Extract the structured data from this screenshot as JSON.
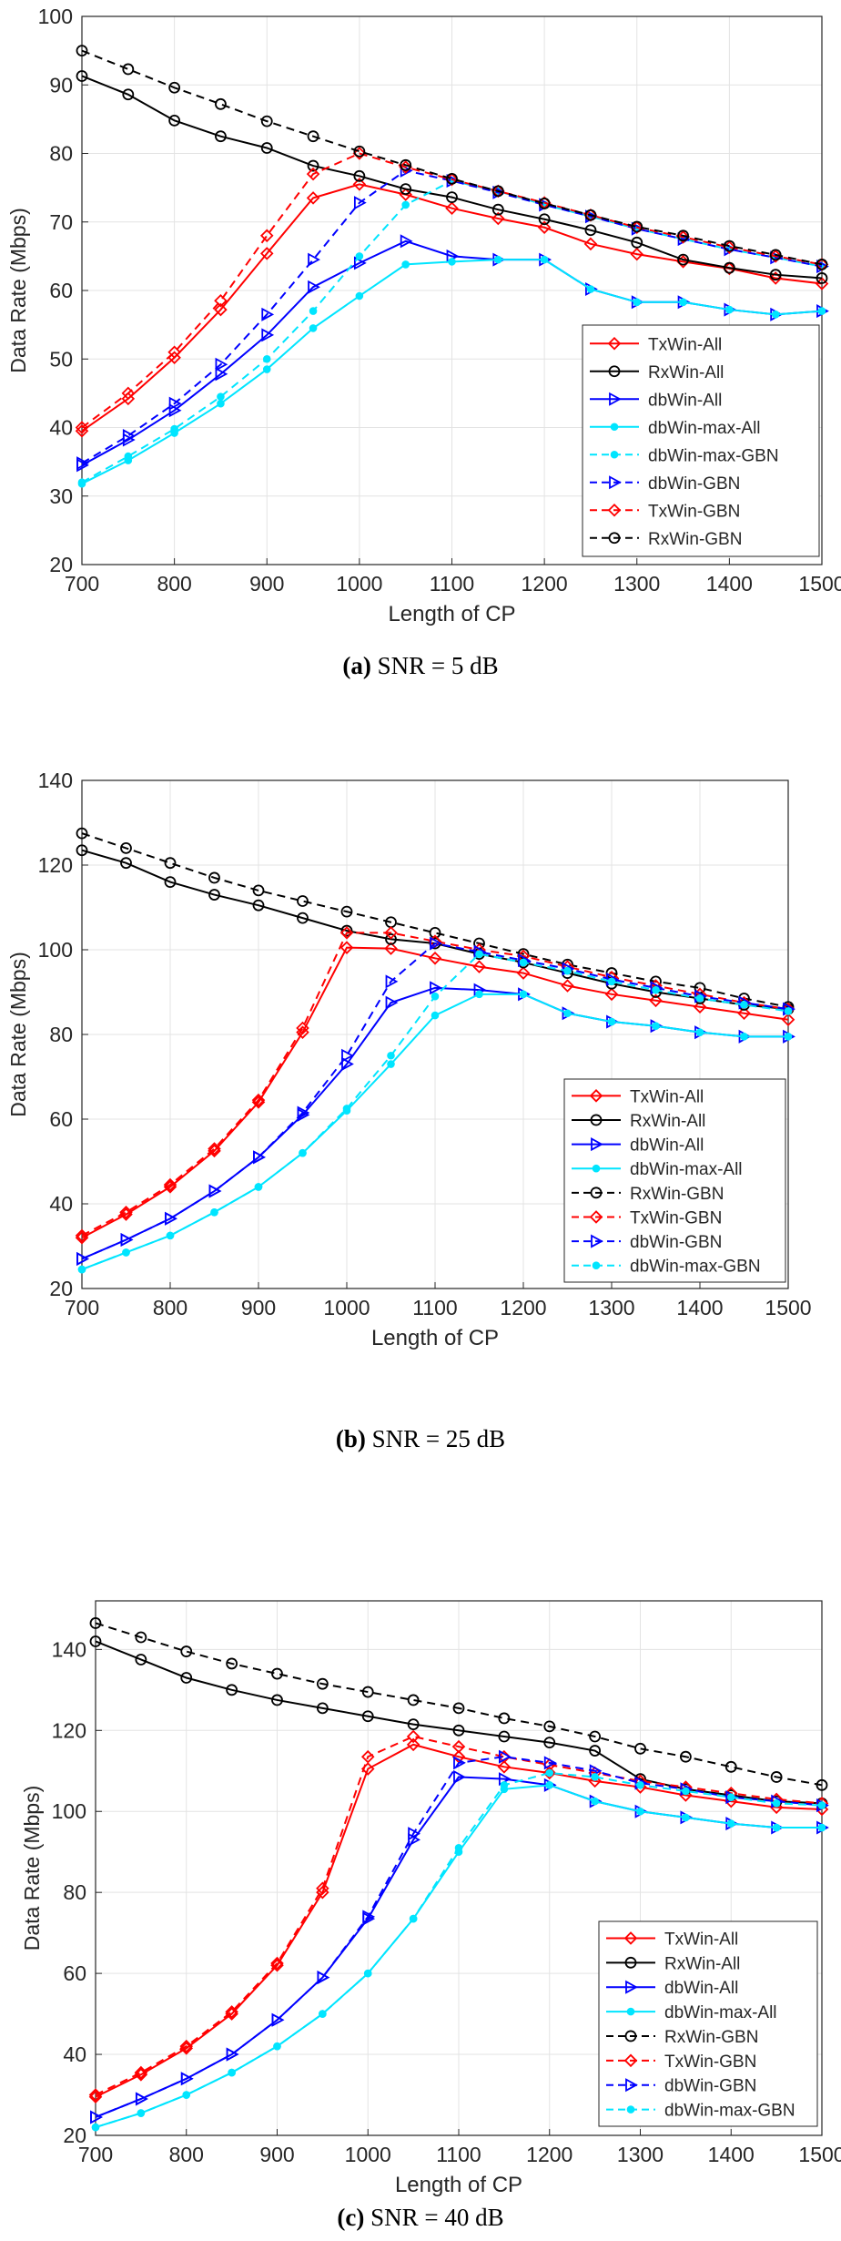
{
  "chart_data": [
    {
      "type": "line",
      "caption_letter": "(a)",
      "caption_text": "SNR = 5 dB",
      "xlabel": "Length of CP",
      "ylabel": "Data Rate (Mbps)",
      "xlim": [
        700,
        1500
      ],
      "ylim": [
        20,
        100
      ],
      "xticks": [
        700,
        800,
        900,
        1000,
        1100,
        1200,
        1300,
        1400,
        1500
      ],
      "yticks": [
        20,
        30,
        40,
        50,
        60,
        70,
        80,
        90,
        100
      ],
      "grid": true,
      "legend_position": "right",
      "x": [
        700,
        750,
        800,
        850,
        900,
        950,
        1000,
        1050,
        1100,
        1150,
        1200,
        1250,
        1300,
        1350,
        1400,
        1450,
        1500
      ],
      "series": [
        {
          "name": "TxWin-All",
          "color": "#ff0000",
          "dash": "solid",
          "marker": "diamond",
          "values": [
            39.5,
            44.2,
            50.2,
            57.2,
            65.4,
            73.5,
            75.5,
            74.0,
            72.0,
            70.5,
            69.2,
            66.8,
            65.3,
            64.2,
            63.2,
            61.8,
            61.0
          ]
        },
        {
          "name": "RxWin-All",
          "color": "#000000",
          "dash": "solid",
          "marker": "circle",
          "values": [
            91.3,
            88.6,
            84.8,
            82.5,
            80.8,
            78.2,
            76.7,
            74.8,
            73.6,
            71.8,
            70.4,
            68.8,
            67.0,
            64.5,
            63.3,
            62.3,
            61.8
          ]
        },
        {
          "name": "dbWin-All",
          "color": "#0000ff",
          "dash": "solid",
          "marker": "triangle-right",
          "values": [
            34.5,
            38.2,
            42.5,
            47.8,
            53.5,
            60.5,
            64.0,
            67.2,
            65.0,
            64.5,
            64.5,
            60.2,
            58.3,
            58.3,
            57.2,
            56.5,
            57.0
          ]
        },
        {
          "name": "dbWin-max-All",
          "color": "#00e5ff",
          "dash": "solid",
          "marker": "dot",
          "values": [
            31.8,
            35.2,
            39.2,
            43.5,
            48.5,
            54.5,
            59.2,
            63.8,
            64.2,
            64.5,
            64.5,
            60.2,
            58.3,
            58.3,
            57.2,
            56.5,
            57.0
          ]
        },
        {
          "name": "dbWin-max-GBN",
          "color": "#00e5ff",
          "dash": "dashed",
          "marker": "dot",
          "values": [
            32.0,
            35.8,
            39.8,
            44.5,
            50.0,
            57.0,
            65.0,
            72.5,
            76.0,
            74.5,
            72.5,
            70.8,
            69.0,
            67.5,
            66.0,
            64.8,
            63.5
          ]
        },
        {
          "name": "dbWin-GBN",
          "color": "#0000ff",
          "dash": "dashed",
          "marker": "triangle-right",
          "values": [
            34.8,
            38.8,
            43.5,
            49.2,
            56.5,
            64.5,
            72.8,
            77.5,
            76.0,
            74.3,
            72.5,
            70.8,
            69.0,
            67.5,
            66.0,
            64.8,
            63.5
          ]
        },
        {
          "name": "TxWin-GBN",
          "color": "#ff0000",
          "dash": "dashed",
          "marker": "diamond",
          "values": [
            40.0,
            45.0,
            51.0,
            58.5,
            68.0,
            77.0,
            80.0,
            78.0,
            76.2,
            74.5,
            72.8,
            71.0,
            69.2,
            67.8,
            66.3,
            65.0,
            63.8
          ]
        },
        {
          "name": "RxWin-GBN",
          "color": "#000000",
          "dash": "dashed",
          "marker": "circle",
          "values": [
            95.0,
            92.3,
            89.6,
            87.2,
            84.7,
            82.5,
            80.3,
            78.3,
            76.3,
            74.5,
            72.7,
            71.0,
            69.3,
            68.0,
            66.5,
            65.2,
            63.8
          ]
        }
      ]
    },
    {
      "type": "line",
      "caption_letter": "(b)",
      "caption_text": "SNR = 25 dB",
      "xlabel": "Length of CP",
      "ylabel": "Data Rate (Mbps)",
      "xlim": [
        700,
        1500
      ],
      "ylim": [
        20,
        140
      ],
      "xticks": [
        700,
        800,
        900,
        1000,
        1100,
        1200,
        1300,
        1400,
        1500
      ],
      "yticks": [
        20,
        40,
        60,
        80,
        100,
        120,
        140
      ],
      "grid": true,
      "legend_position": "bottom-right",
      "x": [
        700,
        750,
        800,
        850,
        900,
        950,
        1000,
        1050,
        1100,
        1150,
        1200,
        1250,
        1300,
        1350,
        1400,
        1450,
        1500
      ],
      "series": [
        {
          "name": "TxWin-All",
          "color": "#ff0000",
          "dash": "solid",
          "marker": "diamond",
          "values": [
            32.0,
            37.5,
            44.0,
            52.5,
            64.0,
            80.5,
            100.5,
            100.3,
            98.0,
            96.0,
            94.5,
            91.5,
            89.5,
            88.0,
            86.5,
            85.0,
            83.5
          ]
        },
        {
          "name": "RxWin-All",
          "color": "#000000",
          "dash": "solid",
          "marker": "circle",
          "values": [
            123.5,
            120.5,
            116.0,
            113.0,
            110.5,
            107.5,
            104.5,
            102.5,
            101.5,
            99.0,
            97.0,
            94.5,
            92.0,
            90.0,
            88.5,
            87.0,
            86.0
          ]
        },
        {
          "name": "dbWin-All",
          "color": "#0000ff",
          "dash": "solid",
          "marker": "triangle-right",
          "values": [
            27.0,
            31.5,
            36.5,
            43.0,
            51.0,
            61.0,
            73.0,
            87.5,
            91.0,
            90.5,
            89.5,
            85.0,
            83.0,
            82.0,
            80.5,
            79.5,
            79.5
          ]
        },
        {
          "name": "dbWin-max-All",
          "color": "#00e5ff",
          "dash": "solid",
          "marker": "dot",
          "values": [
            24.5,
            28.5,
            32.5,
            38.0,
            44.0,
            52.0,
            62.0,
            73.0,
            84.5,
            89.5,
            89.5,
            85.0,
            83.0,
            82.0,
            80.5,
            79.5,
            79.5
          ]
        },
        {
          "name": "RxWin-GBN",
          "color": "#000000",
          "dash": "dashed",
          "marker": "circle",
          "values": [
            127.5,
            124.0,
            120.5,
            117.0,
            114.0,
            111.5,
            109.0,
            106.5,
            104.0,
            101.5,
            99.0,
            96.5,
            94.5,
            92.5,
            91.0,
            88.5,
            86.5
          ]
        },
        {
          "name": "TxWin-GBN",
          "color": "#ff0000",
          "dash": "dashed",
          "marker": "diamond",
          "values": [
            32.5,
            38.0,
            44.5,
            53.0,
            64.5,
            81.5,
            104.0,
            104.0,
            102.0,
            100.0,
            98.5,
            96.0,
            93.5,
            91.5,
            89.5,
            87.5,
            86.0
          ]
        },
        {
          "name": "dbWin-GBN",
          "color": "#0000ff",
          "dash": "dashed",
          "marker": "triangle-right",
          "values": [
            27.0,
            31.5,
            36.5,
            43.0,
            51.0,
            61.5,
            75.0,
            92.5,
            101.5,
            99.5,
            97.5,
            95.5,
            93.0,
            91.0,
            89.0,
            87.5,
            86.0
          ]
        },
        {
          "name": "dbWin-max-GBN",
          "color": "#00e5ff",
          "dash": "dashed",
          "marker": "dot",
          "values": [
            24.5,
            28.5,
            32.5,
            38.0,
            44.0,
            52.0,
            62.5,
            75.0,
            89.0,
            99.0,
            97.0,
            95.0,
            92.5,
            90.5,
            88.5,
            87.0,
            85.5
          ]
        }
      ]
    },
    {
      "type": "line",
      "caption_letter": "(c)",
      "caption_text": "SNR = 40 dB",
      "xlabel": "Length of CP",
      "ylabel": "Data Rate (Mbps)",
      "xlim": [
        700,
        1500
      ],
      "ylim": [
        20,
        152
      ],
      "xticks": [
        700,
        800,
        900,
        1000,
        1100,
        1200,
        1300,
        1400,
        1500
      ],
      "yticks": [
        20,
        40,
        60,
        80,
        100,
        120,
        140
      ],
      "grid": true,
      "legend_position": "bottom-right",
      "x": [
        700,
        750,
        800,
        850,
        900,
        950,
        1000,
        1050,
        1100,
        1150,
        1200,
        1250,
        1300,
        1350,
        1400,
        1450,
        1500
      ],
      "series": [
        {
          "name": "TxWin-All",
          "color": "#ff0000",
          "dash": "solid",
          "marker": "diamond",
          "values": [
            29.5,
            35.0,
            41.5,
            50.0,
            62.0,
            80.0,
            110.5,
            116.5,
            113.5,
            111.0,
            109.5,
            107.5,
            106.0,
            104.0,
            102.5,
            101.0,
            100.5
          ]
        },
        {
          "name": "RxWin-All",
          "color": "#000000",
          "dash": "solid",
          "marker": "circle",
          "values": [
            142.0,
            137.5,
            133.0,
            130.0,
            127.5,
            125.5,
            123.5,
            121.5,
            120.0,
            118.5,
            117.0,
            115.0,
            108.0,
            105.5,
            104.0,
            102.5,
            102.0
          ]
        },
        {
          "name": "dbWin-All",
          "color": "#0000ff",
          "dash": "solid",
          "marker": "triangle-right",
          "values": [
            24.5,
            29.0,
            34.0,
            40.0,
            48.5,
            59.0,
            73.5,
            93.0,
            108.5,
            108.0,
            106.5,
            102.5,
            100.0,
            98.5,
            97.0,
            96.0,
            96.0
          ]
        },
        {
          "name": "dbWin-max-All",
          "color": "#00e5ff",
          "dash": "solid",
          "marker": "dot",
          "values": [
            22.0,
            25.5,
            30.0,
            35.5,
            42.0,
            50.0,
            60.0,
            73.5,
            90.0,
            105.5,
            106.5,
            102.5,
            100.0,
            98.5,
            97.0,
            96.0,
            96.0
          ]
        },
        {
          "name": "RxWin-GBN",
          "color": "#000000",
          "dash": "dashed",
          "marker": "circle",
          "values": [
            146.5,
            143.0,
            139.5,
            136.5,
            134.0,
            131.5,
            129.5,
            127.5,
            125.5,
            123.0,
            121.0,
            118.5,
            115.5,
            113.5,
            111.0,
            108.5,
            106.5
          ]
        },
        {
          "name": "TxWin-GBN",
          "color": "#ff0000",
          "dash": "dashed",
          "marker": "diamond",
          "values": [
            30.0,
            35.5,
            42.0,
            50.5,
            62.5,
            81.0,
            113.5,
            118.5,
            116.0,
            113.5,
            111.5,
            109.5,
            107.5,
            106.0,
            104.5,
            103.0,
            102.0
          ]
        },
        {
          "name": "dbWin-GBN",
          "color": "#0000ff",
          "dash": "dashed",
          "marker": "triangle-right",
          "values": [
            24.5,
            29.0,
            34.0,
            40.0,
            48.5,
            59.0,
            74.0,
            94.5,
            112.0,
            113.5,
            112.0,
            110.0,
            107.0,
            105.5,
            103.5,
            102.5,
            101.5
          ]
        },
        {
          "name": "dbWin-max-GBN",
          "color": "#00e5ff",
          "dash": "dashed",
          "marker": "dot",
          "values": [
            22.0,
            25.5,
            30.0,
            35.5,
            42.0,
            50.0,
            60.0,
            73.5,
            91.0,
            106.5,
            109.5,
            108.5,
            106.5,
            105.0,
            103.5,
            102.0,
            101.5
          ]
        }
      ]
    }
  ]
}
